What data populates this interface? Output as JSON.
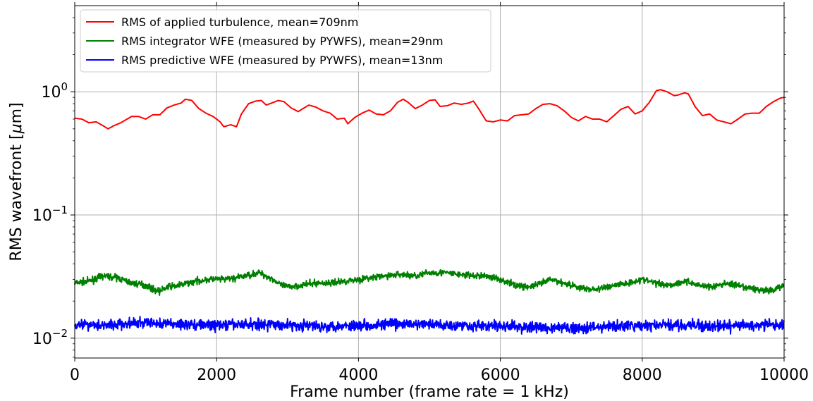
{
  "chart_data": {
    "type": "line",
    "xlabel_parts": [
      "Frame number (frame rate = 1",
      "kHz)"
    ],
    "ylabel_parts": [
      "RMS wavefront [",
      "μ",
      "m]"
    ],
    "x_range": [
      0,
      10000
    ],
    "y_range": [
      0.0069,
      5.0
    ],
    "y_scale": "log",
    "grid": true,
    "legend_position": "upper-left",
    "x_ticks": [
      {
        "value": 0,
        "label": "0"
      },
      {
        "value": 2000,
        "label": "2000"
      },
      {
        "value": 4000,
        "label": "4000"
      },
      {
        "value": 6000,
        "label": "6000"
      },
      {
        "value": 8000,
        "label": "8000"
      },
      {
        "value": 10000,
        "label": "10000"
      }
    ],
    "y_ticks": [
      {
        "value": 1,
        "base": "10",
        "exp": "0"
      },
      {
        "value": 0.1,
        "base": "10",
        "exp": "−1"
      },
      {
        "value": 0.01,
        "base": "10",
        "exp": "−2"
      }
    ],
    "series": [
      {
        "name": "RMS of applied turbulence, mean=709nm",
        "color": "#ff0000",
        "noise": 0.0,
        "points": [
          [
            0,
            0.61
          ],
          [
            100,
            0.6
          ],
          [
            200,
            0.56
          ],
          [
            300,
            0.57
          ],
          [
            400,
            0.53
          ],
          [
            470,
            0.5
          ],
          [
            550,
            0.53
          ],
          [
            650,
            0.56
          ],
          [
            800,
            0.63
          ],
          [
            900,
            0.63
          ],
          [
            1000,
            0.6
          ],
          [
            1100,
            0.65
          ],
          [
            1200,
            0.65
          ],
          [
            1300,
            0.74
          ],
          [
            1400,
            0.78
          ],
          [
            1500,
            0.81
          ],
          [
            1560,
            0.87
          ],
          [
            1650,
            0.85
          ],
          [
            1750,
            0.73
          ],
          [
            1850,
            0.67
          ],
          [
            1950,
            0.63
          ],
          [
            2050,
            0.57
          ],
          [
            2100,
            0.52
          ],
          [
            2200,
            0.54
          ],
          [
            2280,
            0.52
          ],
          [
            2350,
            0.66
          ],
          [
            2450,
            0.8
          ],
          [
            2550,
            0.84
          ],
          [
            2630,
            0.85
          ],
          [
            2700,
            0.78
          ],
          [
            2800,
            0.82
          ],
          [
            2870,
            0.85
          ],
          [
            2950,
            0.83
          ],
          [
            3050,
            0.74
          ],
          [
            3150,
            0.69
          ],
          [
            3300,
            0.78
          ],
          [
            3400,
            0.75
          ],
          [
            3500,
            0.7
          ],
          [
            3600,
            0.67
          ],
          [
            3700,
            0.6
          ],
          [
            3800,
            0.61
          ],
          [
            3850,
            0.55
          ],
          [
            3950,
            0.62
          ],
          [
            4050,
            0.67
          ],
          [
            4150,
            0.71
          ],
          [
            4250,
            0.66
          ],
          [
            4350,
            0.65
          ],
          [
            4450,
            0.7
          ],
          [
            4550,
            0.82
          ],
          [
            4630,
            0.87
          ],
          [
            4700,
            0.82
          ],
          [
            4800,
            0.73
          ],
          [
            4900,
            0.78
          ],
          [
            5000,
            0.85
          ],
          [
            5080,
            0.86
          ],
          [
            5150,
            0.76
          ],
          [
            5250,
            0.77
          ],
          [
            5350,
            0.81
          ],
          [
            5450,
            0.79
          ],
          [
            5550,
            0.81
          ],
          [
            5620,
            0.84
          ],
          [
            5700,
            0.72
          ],
          [
            5800,
            0.58
          ],
          [
            5900,
            0.57
          ],
          [
            6000,
            0.59
          ],
          [
            6100,
            0.58
          ],
          [
            6200,
            0.64
          ],
          [
            6300,
            0.65
          ],
          [
            6400,
            0.66
          ],
          [
            6500,
            0.73
          ],
          [
            6600,
            0.79
          ],
          [
            6700,
            0.8
          ],
          [
            6800,
            0.77
          ],
          [
            6900,
            0.7
          ],
          [
            7000,
            0.62
          ],
          [
            7100,
            0.58
          ],
          [
            7200,
            0.63
          ],
          [
            7300,
            0.6
          ],
          [
            7400,
            0.6
          ],
          [
            7500,
            0.57
          ],
          [
            7600,
            0.64
          ],
          [
            7700,
            0.72
          ],
          [
            7800,
            0.76
          ],
          [
            7900,
            0.66
          ],
          [
            8000,
            0.7
          ],
          [
            8100,
            0.82
          ],
          [
            8200,
            1.02
          ],
          [
            8260,
            1.04
          ],
          [
            8350,
            1.0
          ],
          [
            8450,
            0.93
          ],
          [
            8500,
            0.94
          ],
          [
            8600,
            0.98
          ],
          [
            8650,
            0.96
          ],
          [
            8750,
            0.75
          ],
          [
            8850,
            0.64
          ],
          [
            8950,
            0.66
          ],
          [
            9050,
            0.59
          ],
          [
            9150,
            0.57
          ],
          [
            9250,
            0.55
          ],
          [
            9350,
            0.6
          ],
          [
            9450,
            0.66
          ],
          [
            9550,
            0.67
          ],
          [
            9650,
            0.67
          ],
          [
            9750,
            0.76
          ],
          [
            9850,
            0.83
          ],
          [
            9950,
            0.89
          ],
          [
            10000,
            0.9
          ]
        ]
      },
      {
        "name": "RMS integrator WFE (measured by PYWFS), mean=29nm",
        "color": "#008000",
        "noise": 0.06,
        "points": [
          [
            0,
            0.028
          ],
          [
            200,
            0.029
          ],
          [
            400,
            0.032
          ],
          [
            600,
            0.031
          ],
          [
            800,
            0.028
          ],
          [
            1000,
            0.027
          ],
          [
            1100,
            0.025
          ],
          [
            1200,
            0.024
          ],
          [
            1300,
            0.026
          ],
          [
            1500,
            0.027
          ],
          [
            1700,
            0.029
          ],
          [
            1900,
            0.03
          ],
          [
            2100,
            0.03
          ],
          [
            2300,
            0.031
          ],
          [
            2500,
            0.033
          ],
          [
            2600,
            0.034
          ],
          [
            2800,
            0.03
          ],
          [
            2900,
            0.027
          ],
          [
            3000,
            0.026
          ],
          [
            3200,
            0.027
          ],
          [
            3400,
            0.028
          ],
          [
            3600,
            0.028
          ],
          [
            3800,
            0.029
          ],
          [
            4000,
            0.03
          ],
          [
            4200,
            0.031
          ],
          [
            4400,
            0.032
          ],
          [
            4600,
            0.033
          ],
          [
            4800,
            0.032
          ],
          [
            5000,
            0.034
          ],
          [
            5200,
            0.034
          ],
          [
            5400,
            0.033
          ],
          [
            5600,
            0.032
          ],
          [
            5800,
            0.032
          ],
          [
            6000,
            0.03
          ],
          [
            6200,
            0.027
          ],
          [
            6400,
            0.026
          ],
          [
            6600,
            0.028
          ],
          [
            6700,
            0.03
          ],
          [
            6800,
            0.029
          ],
          [
            7000,
            0.027
          ],
          [
            7200,
            0.025
          ],
          [
            7400,
            0.025
          ],
          [
            7600,
            0.027
          ],
          [
            7800,
            0.028
          ],
          [
            8000,
            0.03
          ],
          [
            8200,
            0.028
          ],
          [
            8400,
            0.027
          ],
          [
            8600,
            0.029
          ],
          [
            8800,
            0.027
          ],
          [
            9000,
            0.026
          ],
          [
            9200,
            0.028
          ],
          [
            9400,
            0.026
          ],
          [
            9600,
            0.025
          ],
          [
            9800,
            0.024
          ],
          [
            10000,
            0.027
          ]
        ]
      },
      {
        "name": "RMS predictive WFE (measured by PYWFS), mean=13nm",
        "color": "#0000ff",
        "noise": 0.1,
        "points": [
          [
            0,
            0.013
          ],
          [
            500,
            0.0128
          ],
          [
            1000,
            0.0133
          ],
          [
            1500,
            0.013
          ],
          [
            2000,
            0.0127
          ],
          [
            2500,
            0.013
          ],
          [
            3000,
            0.0128
          ],
          [
            3500,
            0.0125
          ],
          [
            4000,
            0.0127
          ],
          [
            4500,
            0.013
          ],
          [
            5000,
            0.0129
          ],
          [
            5500,
            0.0127
          ],
          [
            6000,
            0.0125
          ],
          [
            6500,
            0.0122
          ],
          [
            7000,
            0.0121
          ],
          [
            7500,
            0.0124
          ],
          [
            8000,
            0.0126
          ],
          [
            8500,
            0.0128
          ],
          [
            9000,
            0.0124
          ],
          [
            9500,
            0.0127
          ],
          [
            10000,
            0.0128
          ]
        ]
      }
    ]
  }
}
